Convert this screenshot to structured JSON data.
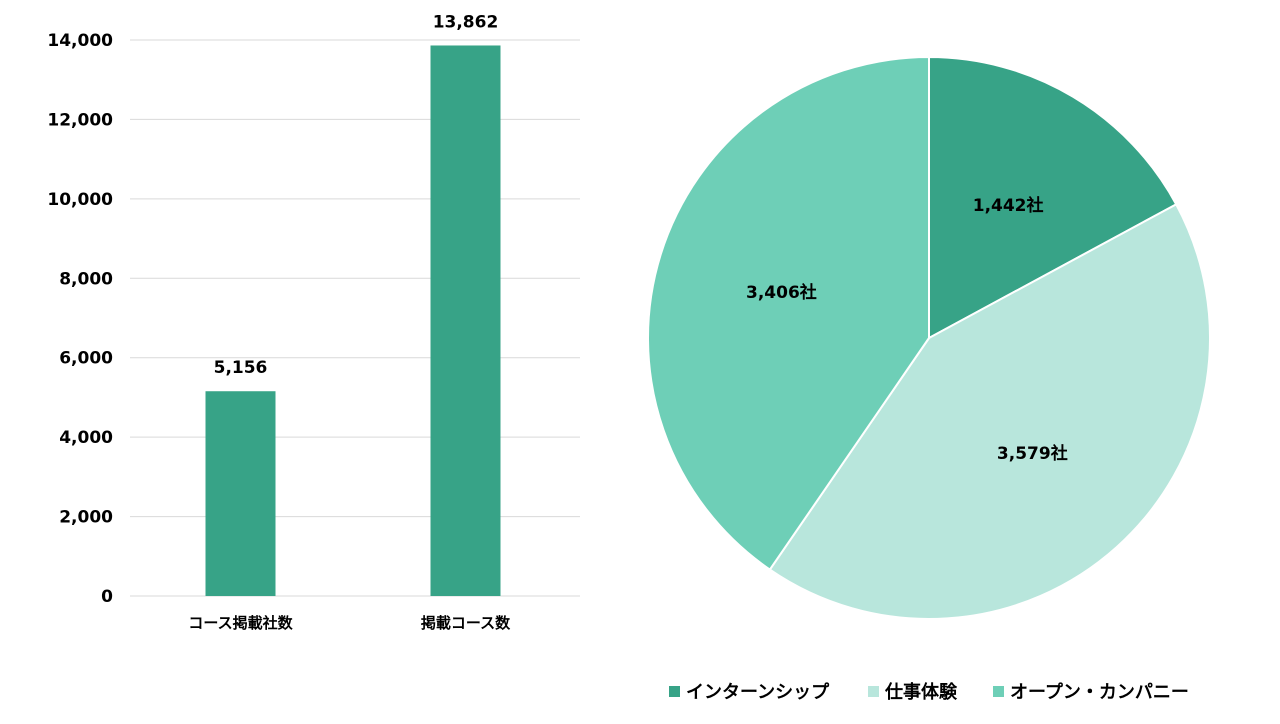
{
  "colors": {
    "primary": "#37A387",
    "light": "#B8E6DC",
    "mid": "#6ECFB7",
    "grid": "#D9D9D9"
  },
  "chart_data": [
    {
      "type": "bar",
      "categories": [
        "コース掲載社数",
        "掲載コース数"
      ],
      "values": [
        5156,
        13862
      ],
      "value_labels": [
        "5,156",
        "13,862"
      ],
      "ylim": [
        0,
        14000
      ],
      "yticks": [
        0,
        2000,
        4000,
        6000,
        8000,
        10000,
        12000,
        14000
      ],
      "ytick_labels": [
        "0",
        "2,000",
        "4,000",
        "6,000",
        "8,000",
        "10,000",
        "12,000",
        "14,000"
      ],
      "grid": true,
      "color": "#37A387"
    },
    {
      "type": "pie",
      "slices": [
        {
          "name": "インターンシップ",
          "value": 1442,
          "label": "1,442社",
          "color": "#37A387"
        },
        {
          "name": "仕事体験",
          "value": 3579,
          "label": "3,579社",
          "color": "#B8E6DC"
        },
        {
          "name": "オープン・カンパニー",
          "value": 3406,
          "label": "3,406社",
          "color": "#6ECFB7"
        }
      ],
      "legend_position": "bottom"
    }
  ]
}
